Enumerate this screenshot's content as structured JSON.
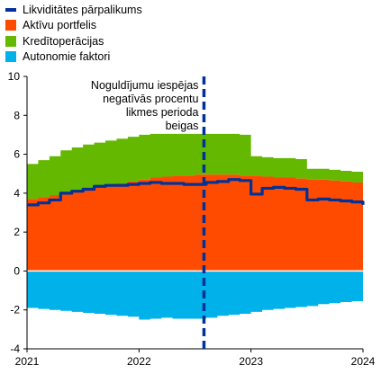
{
  "chart_data": {
    "type": "area",
    "x_start": 2021.0,
    "x_end": 2024.0,
    "xlim": [
      2021,
      2024
    ],
    "ylim": [
      -4,
      10
    ],
    "y_ticks": [
      -4,
      -2,
      0,
      2,
      4,
      6,
      8,
      10
    ],
    "y_tick_labels": [
      "-4",
      "-2",
      "0",
      "2",
      "4",
      "6",
      "8",
      "10"
    ],
    "x_ticks": [
      2021,
      2022,
      2023,
      2024
    ],
    "x_tick_labels": [
      "2021",
      "2022",
      "2023",
      "2024"
    ],
    "grid": false,
    "legend_position": "top-left",
    "colors": {
      "liquidity": "#003299",
      "portfolios": "#ff4b00",
      "credit": "#65b800",
      "autonomous": "#00b1ea",
      "marker": "#003299"
    },
    "legend": [
      {
        "label": "Likviditātes pārpalikums",
        "color": "#003299",
        "kind": "line"
      },
      {
        "label": "Aktīvu portfelis",
        "color": "#ff4b00",
        "kind": "box"
      },
      {
        "label": "Kredītoperācijas",
        "color": "#65b800",
        "kind": "box"
      },
      {
        "label": "Autonomie faktori",
        "color": "#00b1ea",
        "kind": "box"
      }
    ],
    "series": [
      {
        "name": "Aktīvu portfelis",
        "x": [
          2021.0,
          2021.1,
          2021.2,
          2021.3,
          2021.4,
          2021.5,
          2021.6,
          2021.7,
          2021.8,
          2021.9,
          2022.0,
          2022.1,
          2022.2,
          2022.3,
          2022.4,
          2022.5,
          2022.6,
          2022.7,
          2022.8,
          2022.9,
          2023.0,
          2023.1,
          2023.2,
          2023.3,
          2023.4,
          2023.5,
          2023.6,
          2023.7,
          2023.8,
          2023.9,
          2024.0
        ],
        "values": [
          3.7,
          3.8,
          3.9,
          4.0,
          4.1,
          4.2,
          4.3,
          4.4,
          4.5,
          4.6,
          4.7,
          4.8,
          4.85,
          4.9,
          4.9,
          4.95,
          4.95,
          4.95,
          4.95,
          4.9,
          4.9,
          4.85,
          4.8,
          4.8,
          4.75,
          4.7,
          4.7,
          4.65,
          4.6,
          4.55,
          4.5
        ]
      },
      {
        "name": "Kredītoperācijas",
        "x": [
          2021.0,
          2021.1,
          2021.2,
          2021.3,
          2021.4,
          2021.5,
          2021.6,
          2021.7,
          2021.8,
          2021.9,
          2022.0,
          2022.1,
          2022.2,
          2022.3,
          2022.4,
          2022.5,
          2022.6,
          2022.7,
          2022.8,
          2022.9,
          2023.0,
          2023.1,
          2023.2,
          2023.3,
          2023.4,
          2023.5,
          2023.6,
          2023.7,
          2023.8,
          2023.9,
          2024.0
        ],
        "values": [
          1.8,
          1.9,
          2.0,
          2.2,
          2.25,
          2.3,
          2.3,
          2.3,
          2.3,
          2.3,
          2.3,
          2.25,
          2.2,
          2.15,
          2.15,
          2.1,
          2.1,
          2.1,
          2.1,
          2.1,
          1.0,
          1.0,
          1.0,
          1.0,
          1.0,
          0.55,
          0.55,
          0.55,
          0.55,
          0.55,
          0.55
        ]
      },
      {
        "name": "Autonomie faktori",
        "x": [
          2021.0,
          2021.1,
          2021.2,
          2021.3,
          2021.4,
          2021.5,
          2021.6,
          2021.7,
          2021.8,
          2021.9,
          2022.0,
          2022.1,
          2022.2,
          2022.3,
          2022.4,
          2022.5,
          2022.6,
          2022.7,
          2022.8,
          2022.9,
          2023.0,
          2023.1,
          2023.2,
          2023.3,
          2023.4,
          2023.5,
          2023.6,
          2023.7,
          2023.8,
          2023.9,
          2024.0
        ],
        "values": [
          -1.9,
          -1.95,
          -2.0,
          -2.05,
          -2.1,
          -2.15,
          -2.2,
          -2.25,
          -2.3,
          -2.35,
          -2.5,
          -2.45,
          -2.4,
          -2.45,
          -2.45,
          -2.45,
          -2.4,
          -2.3,
          -2.25,
          -2.2,
          -2.1,
          -2.0,
          -1.95,
          -1.9,
          -1.85,
          -1.8,
          -1.7,
          -1.65,
          -1.6,
          -1.55,
          -1.5
        ]
      },
      {
        "name": "Likviditātes pārpalikums",
        "x": [
          2021.0,
          2021.1,
          2021.2,
          2021.3,
          2021.4,
          2021.5,
          2021.6,
          2021.7,
          2021.8,
          2021.9,
          2022.0,
          2022.1,
          2022.2,
          2022.3,
          2022.4,
          2022.5,
          2022.6,
          2022.7,
          2022.8,
          2022.9,
          2023.0,
          2023.1,
          2023.2,
          2023.3,
          2023.4,
          2023.5,
          2023.6,
          2023.7,
          2023.8,
          2023.9,
          2024.0
        ],
        "values": [
          3.4,
          3.5,
          3.65,
          4.0,
          4.1,
          4.2,
          4.35,
          4.4,
          4.4,
          4.45,
          4.5,
          4.55,
          4.5,
          4.5,
          4.45,
          4.45,
          4.55,
          4.6,
          4.7,
          4.65,
          3.95,
          4.25,
          4.3,
          4.25,
          4.2,
          3.65,
          3.7,
          3.65,
          3.6,
          3.55,
          3.4
        ]
      }
    ],
    "annotation": {
      "x": 2022.58,
      "lines": [
        "Noguldījumu iespējas",
        "negatīvās procentu",
        "likmes perioda",
        "beigas"
      ]
    }
  }
}
